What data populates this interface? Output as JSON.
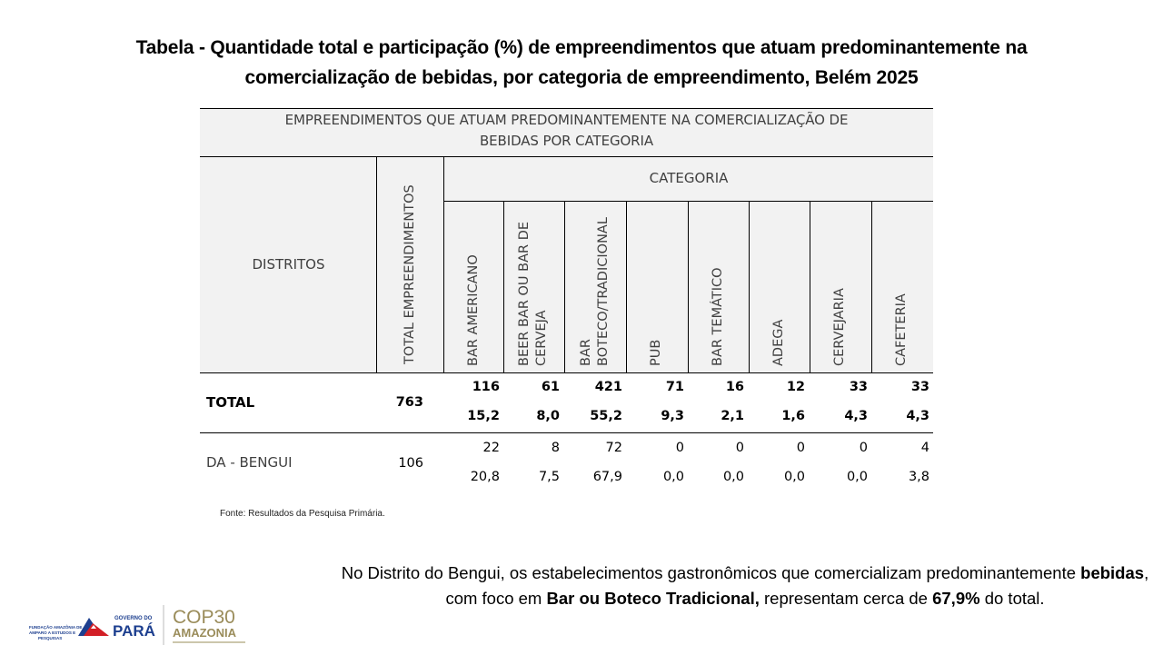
{
  "title": {
    "line1": "Tabela -  Quantidade total e participação (%) de empreendimentos que atuam predominantemente na",
    "line2": "comercialização de bebidas, por categoria de empreendimento, Belém 2025"
  },
  "table": {
    "main_header_line1": "EMPREENDIMENTOS QUE ATUAM PREDOMINANTEMENTE NA COMERCIALIZAÇÃO DE",
    "main_header_line2": "BEBIDAS POR CATEGORIA",
    "categoria_header": "CATEGORIA",
    "distritos_header": "DISTRITOS",
    "total_header": "TOTAL EMPREENDIMENTOS",
    "categories": [
      "BAR AMERICANO",
      "BEER BAR OU BAR DE\nCERVEJA",
      "BAR\nBOTECO/TRADICIONAL",
      "PUB",
      "BAR TEMÁTICO",
      "ADEGA",
      "CERVEJARIA",
      "CAFETERIA"
    ],
    "rows": [
      {
        "label": "TOTAL",
        "total": "763",
        "counts": [
          "116",
          "61",
          "421",
          "71",
          "16",
          "12",
          "33",
          "33"
        ],
        "percents": [
          "15,2",
          "8,0",
          "55,2",
          "9,3",
          "2,1",
          "1,6",
          "4,3",
          "4,3"
        ]
      },
      {
        "label": "DA - BENGUI",
        "total": "106",
        "counts": [
          "22",
          "8",
          "72",
          "0",
          "0",
          "0",
          "0",
          "4"
        ],
        "percents": [
          "20,8",
          "7,5",
          "67,9",
          "0,0",
          "0,0",
          "0,0",
          "0,0",
          "3,8"
        ]
      }
    ]
  },
  "source": "Fonte: Resultados da Pesquisa Primária.",
  "note": {
    "part1": "No Distrito do Bengui, os estabelecimentos gastronômicos que comercializam predominantemente ",
    "bold1": "bebidas",
    "part2": ", com foco em ",
    "bold2": "Bar ou Boteco Tradicional,",
    "part3": " representam cerca de ",
    "bold3": "67,9%",
    "part4": " do total."
  },
  "logos": {
    "fapespa_line1": "FUNDAÇÃO AMAZÔNIA DE",
    "fapespa_line2": "AMPARO A ESTUDOS E",
    "fapespa_line3": "PESQUISAS",
    "governo_label": "GOVERNO DO",
    "para_label": "PARÁ",
    "cop_label": "COP30",
    "amazonia_label": "AMAZONIA",
    "brand_red": "#d21f26",
    "brand_blue": "#1d3f8f",
    "cop_color": "#9a8c5a"
  }
}
